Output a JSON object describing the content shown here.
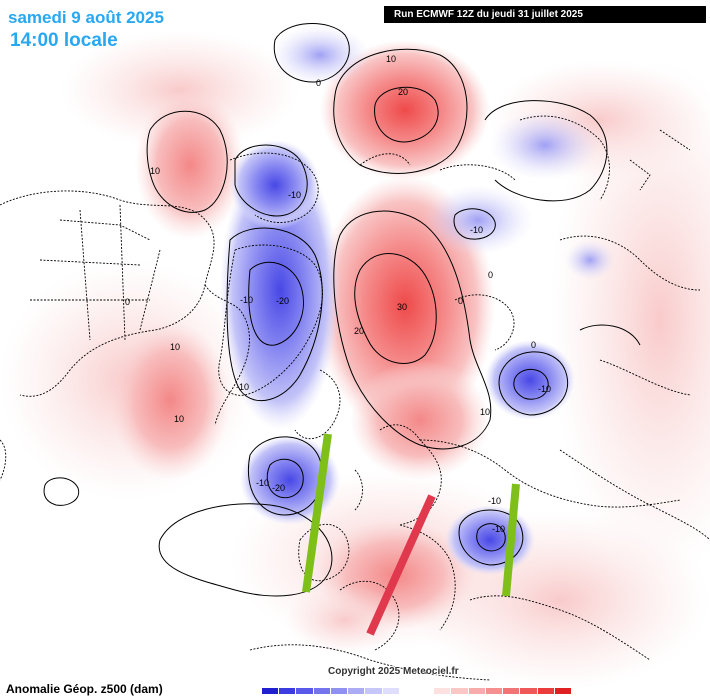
{
  "title": {
    "date": "samedi 9 août 2025",
    "time": "14:00 locale"
  },
  "run_banner": "Run ECMWF 12Z du jeudi 31 juillet 2025",
  "copyright": "Copyright 2025 Meteociel.fr",
  "field_label": "Anomalie Géop. z500 (dam)",
  "contour_labels": {
    "l0a": "0",
    "l0b": "0",
    "l0c": "0",
    "l0d": "0",
    "l0e": "0",
    "l10a": "10",
    "l20a": "20",
    "l10b": "10",
    "l30": "30",
    "l20b": "20",
    "l10c": "10",
    "l10d": "10",
    "l10e": "10",
    "l10f": "10",
    "lm10a": "-10",
    "lm10b": "-10",
    "lm20a": "-20",
    "lm10c": "-10",
    "lm10d": "-10",
    "lm20b": "-20",
    "lm10e": "-10",
    "lm10f": "-10",
    "lm10g": "-10",
    "lm10h": "-10"
  },
  "annotations": {
    "green_bar_color": "#7fbf1a",
    "red_bar_color": "#e0394e"
  },
  "colorbar": [
    "#2020d0",
    "#3c3ce0",
    "#5858ea",
    "#7474ef",
    "#9090f3",
    "#acacf6",
    "#c6c6f9",
    "#dedefc",
    "#ffffff",
    "#ffffff",
    "#fde0e0",
    "#fbc6c6",
    "#f8abab",
    "#f59090",
    "#f27474",
    "#ef5858",
    "#ea3c3c",
    "#e02020"
  ]
}
